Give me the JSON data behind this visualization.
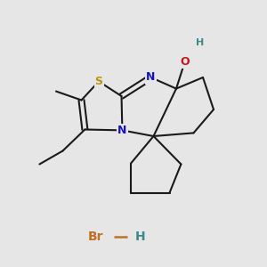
{
  "bg_color": "#e6e6e6",
  "bond_color": "#1a1a1a",
  "S_color": "#b8960a",
  "N_color": "#1414cc",
  "O_color": "#cc1414",
  "H_color": "#3a8a8a",
  "Br_color": "#c07020",
  "line_width": 1.5,
  "dbo": 0.01,
  "S_label": "S",
  "N_label": "N",
  "O_label": "O",
  "H_label": "H",
  "Br_label": "Br"
}
